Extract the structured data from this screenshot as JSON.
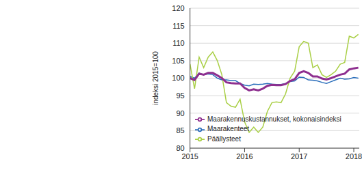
{
  "chart_data": {
    "type": "line",
    "y_label": "indeksi 2015=100",
    "x": [
      2015.0,
      2015.083,
      2015.167,
      2015.25,
      2015.333,
      2015.417,
      2015.5,
      2015.583,
      2015.667,
      2015.75,
      2015.833,
      2015.917,
      2016.0,
      2016.083,
      2016.167,
      2016.25,
      2016.333,
      2016.417,
      2016.5,
      2016.583,
      2016.667,
      2016.75,
      2016.833,
      2016.917,
      2017.0,
      2017.083,
      2017.167,
      2017.25,
      2017.333,
      2017.417,
      2017.5,
      2017.583,
      2017.667,
      2017.75,
      2017.833,
      2017.917,
      2018.0,
      2018.083
    ],
    "series": [
      {
        "name": "Maarakenteet",
        "color": "#2a6ebb",
        "values": [
          100.5,
          100,
          101.5,
          101,
          101.2,
          101,
          100,
          99.5,
          99.5,
          99.3,
          99.3,
          98.5,
          98,
          97.8,
          98.3,
          98.2,
          98.3,
          98.5,
          98.3,
          98.2,
          98.2,
          98.5,
          99,
          99.2,
          100.3,
          100.2,
          99.5,
          99.4,
          99.2,
          98.8,
          98.5,
          99,
          99.5,
          100,
          99.7,
          99.8,
          100.2,
          100
        ]
      },
      {
        "name": "Päällysteet",
        "color": "#a9cf45",
        "values": [
          104,
          97,
          106,
          103,
          106,
          107.5,
          105,
          101,
          93,
          92,
          91.7,
          94,
          87.5,
          84.5,
          86,
          84.5,
          86,
          90.5,
          93,
          93.2,
          93,
          95.5,
          100,
          102,
          109,
          110.5,
          110,
          103,
          103.8,
          101,
          100.2,
          101,
          102,
          104,
          104.5,
          112,
          111.5,
          112.5
        ]
      },
      {
        "name": "Maarakennuskustannukset, kokonaisindeksi",
        "color": "#8e2f8f",
        "values": [
          100,
          99.5,
          101.3,
          101,
          101.5,
          101.5,
          100.8,
          100,
          98.8,
          98.6,
          98.5,
          98.5,
          97.2,
          96.5,
          96.8,
          96.5,
          97,
          97.8,
          98.1,
          98,
          98,
          98.3,
          99.2,
          99.7,
          101.5,
          102,
          101.5,
          100.5,
          100.5,
          99.9,
          99.6,
          100,
          100.5,
          101,
          101.3,
          102.5,
          102.8,
          103
        ]
      }
    ],
    "xlim": [
      2015,
      2018.1
    ],
    "xticks": [
      2015,
      2016,
      2017,
      2018
    ],
    "ylim": [
      80,
      120
    ],
    "yticks": [
      80,
      85,
      90,
      95,
      100,
      105,
      110,
      115,
      120
    ],
    "grid": true
  }
}
